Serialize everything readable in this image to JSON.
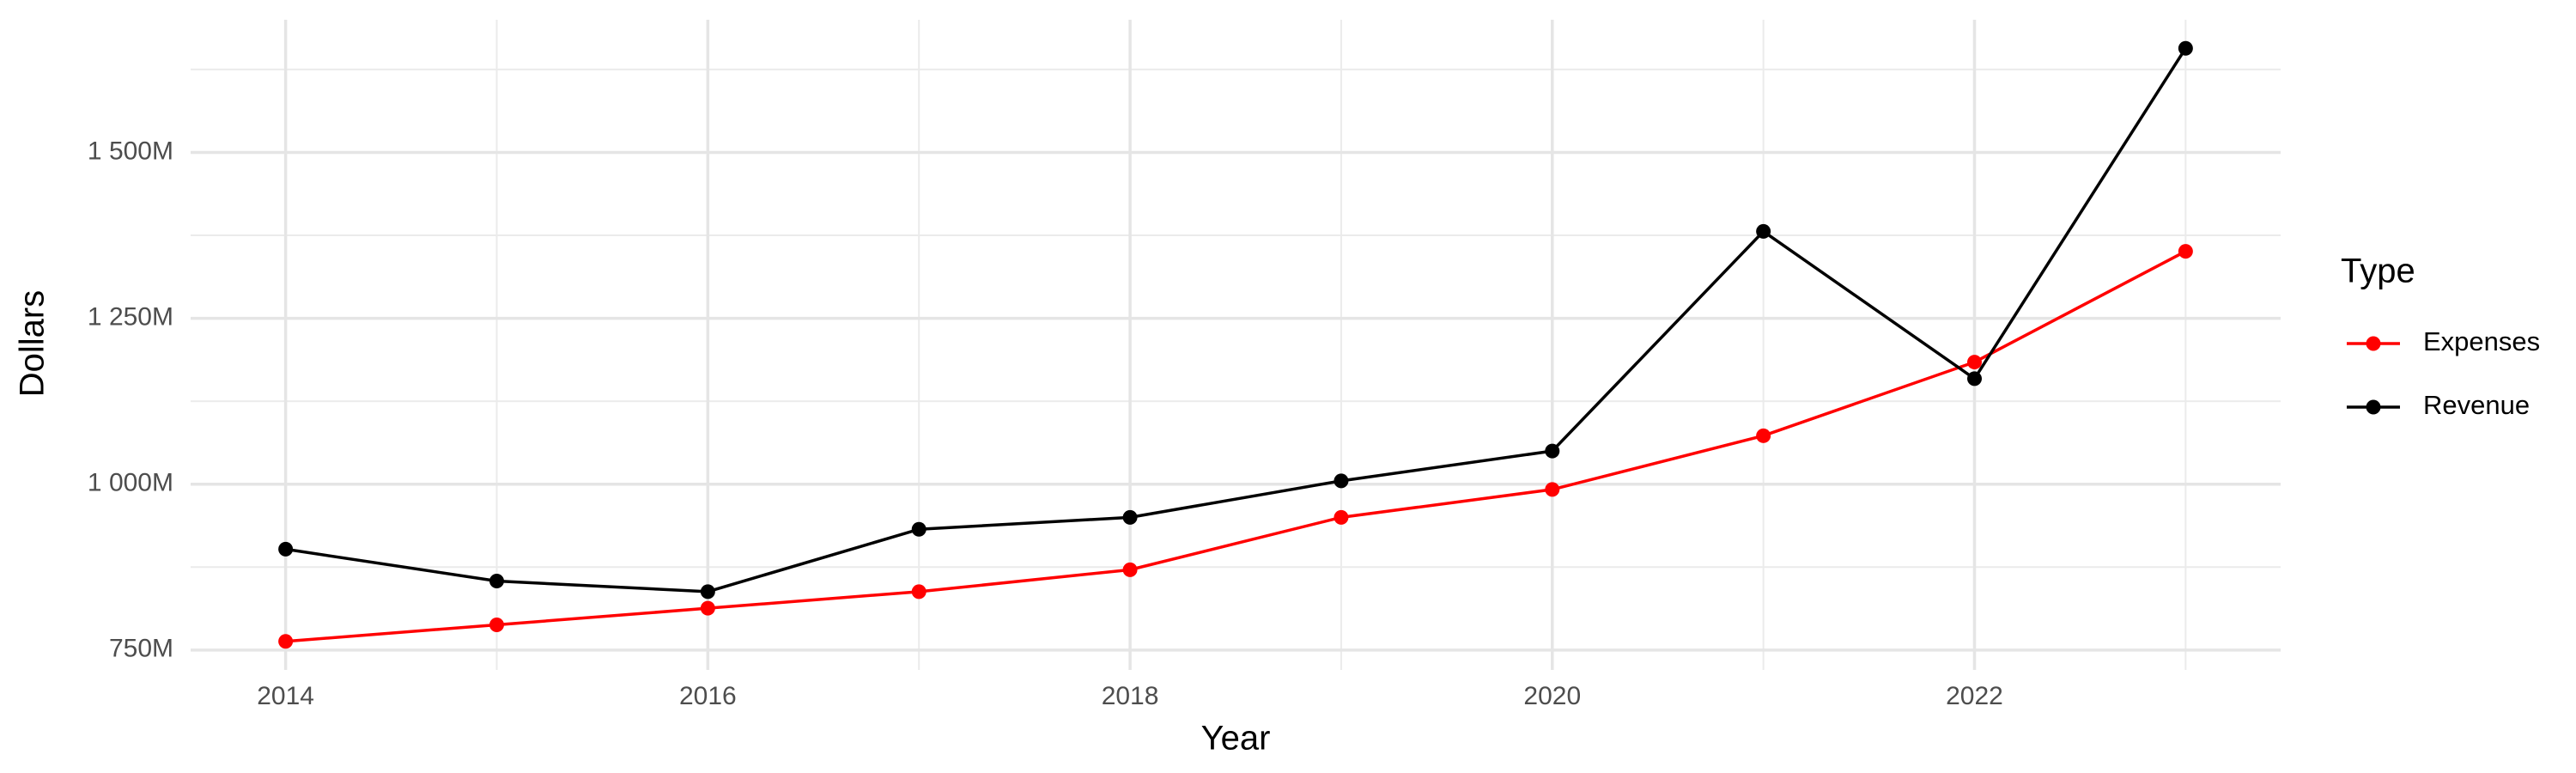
{
  "chart_data": {
    "type": "line",
    "x_label": "Year",
    "y_label": "Dollars",
    "legend_title": "Type",
    "legend_position": "right",
    "grid": true,
    "x": [
      2014,
      2015,
      2016,
      2017,
      2018,
      2019,
      2020,
      2021,
      2022,
      2023
    ],
    "series": [
      {
        "name": "Expenses",
        "color": "#ff0000",
        "values": [
          763000000,
          788000000,
          813000000,
          838000000,
          871000000,
          950000000,
          992000000,
          1073000000,
          1184000000,
          1351000000
        ]
      },
      {
        "name": "Revenue",
        "color": "#000000",
        "values": [
          902000000,
          854000000,
          838000000,
          932000000,
          950000000,
          1005000000,
          1050000000,
          1381000000,
          1159000000,
          1657000000
        ]
      }
    ],
    "xlim": [
      2013.55,
      2023.45
    ],
    "xticks": [
      2014,
      2016,
      2018,
      2020,
      2022
    ],
    "x_minor_ticks": [
      2015,
      2017,
      2019,
      2021,
      2023
    ],
    "ylim": [
      720000000,
      1700000000
    ],
    "yticks": [
      {
        "value": 750000000,
        "label": "750M"
      },
      {
        "value": 1000000000,
        "label": "1 000M"
      },
      {
        "value": 1250000000,
        "label": "1 250M"
      },
      {
        "value": 1500000000,
        "label": "1 500M"
      }
    ],
    "y_minor_ticks": [
      875000000,
      1125000000,
      1375000000,
      1625000000
    ]
  }
}
